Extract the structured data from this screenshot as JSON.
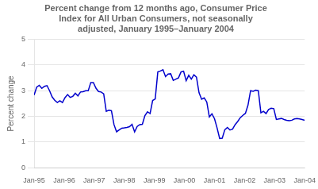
{
  "chart_data": {
    "type": "line",
    "title": "Percent change from 12 months ago, Consumer Price\nIndex for All Urban Consumers, not seasonally\nadjusted, January 1995–January 2004",
    "ylabel": "Percent change",
    "color": "#0000CC",
    "grid": true,
    "xlim": [
      0,
      108
    ],
    "xticks": [
      {
        "value": 0,
        "label": "Jan-95"
      },
      {
        "value": 12,
        "label": "Jan-96"
      },
      {
        "value": 24,
        "label": "Jan-97"
      },
      {
        "value": 36,
        "label": "Jan-98"
      },
      {
        "value": 48,
        "label": "Jan-99"
      },
      {
        "value": 60,
        "label": "Jan-00"
      },
      {
        "value": 72,
        "label": "Jan-01"
      },
      {
        "value": 84,
        "label": "Jan-02"
      },
      {
        "value": 96,
        "label": "Jan-03"
      },
      {
        "value": 108,
        "label": "Jan-04"
      }
    ],
    "ylim": [
      0,
      5
    ],
    "yticks": [
      0,
      1,
      2,
      3,
      4,
      5
    ],
    "x": [
      0,
      1.0286,
      2.0571,
      3.0857,
      4.1143,
      5.1429,
      6.1714,
      7.2,
      8.2286,
      9.2571,
      10.2857,
      11.3143,
      12.3429,
      13.3714,
      14.4,
      15.4286,
      16.4571,
      17.4857,
      18.5143,
      19.5429,
      20.5714,
      21.6,
      22.6286,
      23.6571,
      24.6857,
      25.7143,
      26.7429,
      27.7714,
      28.8,
      29.8286,
      30.8571,
      31.8857,
      32.9143,
      33.9429,
      34.9714,
      36,
      37.0286,
      38.0571,
      39.0857,
      40.1143,
      41.1429,
      42.1714,
      43.2,
      44.2286,
      45.2571,
      46.2857,
      47.3143,
      48.3429,
      49.3714,
      50.4,
      51.4286,
      52.4571,
      53.4857,
      54.5143,
      55.5429,
      56.5714,
      57.6,
      58.6286,
      59.6571,
      60.6857,
      61.7143,
      62.7429,
      63.7714,
      64.8,
      65.8286,
      66.8571,
      67.8857,
      68.9143,
      69.9429,
      70.9714,
      72,
      73.0286,
      74.0571,
      75.0857,
      76.1143,
      77.1429,
      78.1714,
      79.2,
      80.2286,
      81.2571,
      82.2857,
      83.3143,
      84.3429,
      85.3714,
      86.4,
      87.4286,
      88.4571,
      89.4857,
      90.5143,
      91.5429,
      92.5714,
      93.6,
      94.6286,
      95.6571,
      96.6857,
      97.7143,
      98.7429,
      99.7714,
      100.8,
      101.8286,
      102.8571,
      103.8857,
      104.9143,
      105.9429,
      106.9714,
      108
    ],
    "values": [
      2.83,
      3.14,
      3.21,
      3.09,
      3.17,
      3.2,
      3.0,
      2.76,
      2.63,
      2.54,
      2.61,
      2.54,
      2.73,
      2.85,
      2.74,
      2.78,
      2.9,
      2.8,
      2.95,
      2.96,
      3.0,
      3.0,
      3.32,
      3.32,
      3.1,
      2.97,
      2.95,
      2.88,
      2.2,
      2.24,
      2.22,
      1.68,
      1.4,
      1.47,
      1.54,
      1.55,
      1.57,
      1.6,
      1.69,
      1.4,
      1.61,
      1.68,
      1.69,
      2.03,
      2.18,
      2.11,
      2.62,
      2.68,
      3.73,
      3.77,
      3.82,
      3.55,
      3.65,
      3.66,
      3.4,
      3.45,
      3.5,
      3.73,
      3.76,
      3.39,
      3.6,
      3.45,
      3.62,
      3.53,
      2.92,
      2.67,
      2.72,
      2.56,
      1.98,
      2.1,
      1.91,
      1.55,
      1.14,
      1.15,
      1.48,
      1.57,
      1.47,
      1.5,
      1.68,
      1.8,
      1.95,
      2.04,
      2.12,
      2.44,
      3.0,
      2.98,
      3.02,
      3.0,
      2.14,
      2.2,
      2.11,
      2.27,
      2.32,
      2.3,
      1.88,
      1.9,
      1.92,
      1.88,
      1.85,
      1.83,
      1.85,
      1.9,
      1.92,
      1.9,
      1.88,
      1.85
    ]
  }
}
